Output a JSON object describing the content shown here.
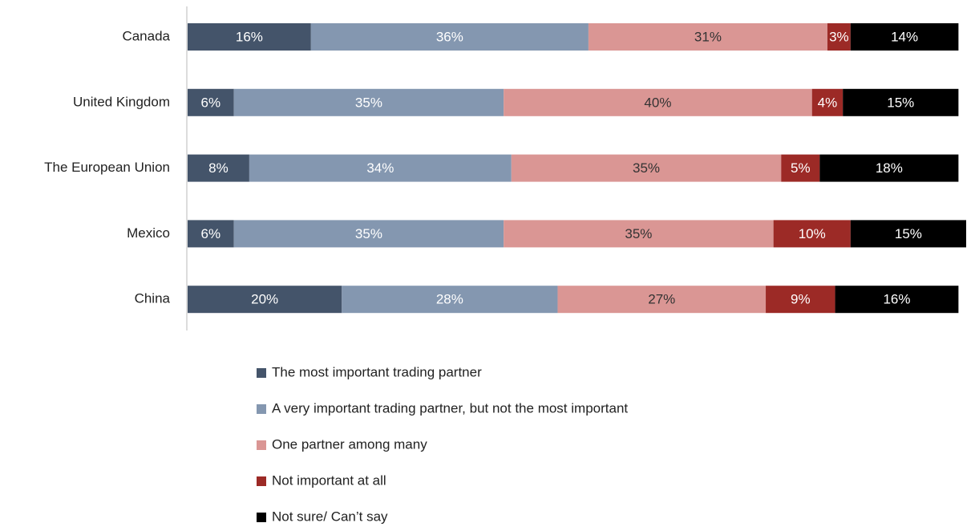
{
  "chart_data": {
    "type": "bar",
    "orientation": "horizontal",
    "stacked": true,
    "categories": [
      "Canada",
      "United Kingdom",
      "The European Union",
      "Mexico",
      "China"
    ],
    "series": [
      {
        "name": "The most important trading partner",
        "color": "#44546a",
        "label_color": "#ffffff",
        "values": [
          16,
          6,
          8,
          6,
          20
        ],
        "value_labels": [
          "16%",
          "6%",
          "8%",
          "6%",
          "20%"
        ]
      },
      {
        "name": "A very important trading partner, but not the most important",
        "color": "#8497b0",
        "label_color": "#ffffff",
        "values": [
          36,
          35,
          34,
          35,
          28
        ],
        "value_labels": [
          "36%",
          "35%",
          "34%",
          "35%",
          "28%"
        ]
      },
      {
        "name": "One partner among many",
        "color": "#da9694",
        "label_color": "#333333",
        "values": [
          31,
          40,
          35,
          35,
          27
        ],
        "value_labels": [
          "31%",
          "40%",
          "35%",
          "35%",
          "27%"
        ]
      },
      {
        "name": "Not important at all",
        "color": "#9c2a26",
        "label_color": "#ffffff",
        "values": [
          3,
          4,
          5,
          10,
          9
        ],
        "value_labels": [
          "3%",
          "4%",
          "5%",
          "10%",
          "9%"
        ]
      },
      {
        "name": "Not sure/ Can’t say",
        "color": "#000000",
        "label_color": "#ffffff",
        "values": [
          14,
          15,
          18,
          15,
          16
        ],
        "value_labels": [
          "14%",
          "15%",
          "18%",
          "15%",
          "16%"
        ]
      }
    ],
    "legend": "bottom"
  }
}
